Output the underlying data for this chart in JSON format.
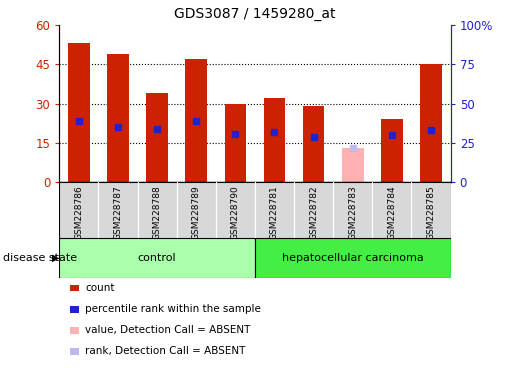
{
  "title": "GDS3087 / 1459280_at",
  "samples": [
    "GSM228786",
    "GSM228787",
    "GSM228788",
    "GSM228789",
    "GSM228790",
    "GSM228781",
    "GSM228782",
    "GSM228783",
    "GSM228784",
    "GSM228785"
  ],
  "bar_values": [
    53,
    49,
    34,
    47,
    30,
    32,
    29,
    null,
    24,
    45
  ],
  "absent_bar_values": [
    null,
    null,
    null,
    null,
    null,
    null,
    null,
    13,
    null,
    null
  ],
  "rank_markers": [
    39,
    35,
    34,
    39,
    31,
    32,
    29,
    null,
    30,
    33
  ],
  "absent_rank_markers": [
    null,
    null,
    null,
    null,
    null,
    null,
    null,
    22,
    null,
    null
  ],
  "bar_color": "#cc2200",
  "absent_bar_color": "#ffb0b0",
  "rank_color": "#2222cc",
  "absent_rank_color": "#bbbbee",
  "ylim_left": [
    0,
    60
  ],
  "ylim_right": [
    0,
    100
  ],
  "yticks_left": [
    0,
    15,
    30,
    45,
    60
  ],
  "ytick_labels_left": [
    "0",
    "15",
    "30",
    "45",
    "60"
  ],
  "ytick_labels_right": [
    "0",
    "25",
    "50",
    "75",
    "100%"
  ],
  "control_color": "#aaffaa",
  "hcc_color": "#44ee44",
  "label_bg_color": "#d8d8d8",
  "disease_label": "disease state",
  "legend_items": [
    {
      "label": "count",
      "color": "#cc2200"
    },
    {
      "label": "percentile rank within the sample",
      "color": "#2222cc"
    },
    {
      "label": "value, Detection Call = ABSENT",
      "color": "#ffb0b0"
    },
    {
      "label": "rank, Detection Call = ABSENT",
      "color": "#bbbbee"
    }
  ]
}
